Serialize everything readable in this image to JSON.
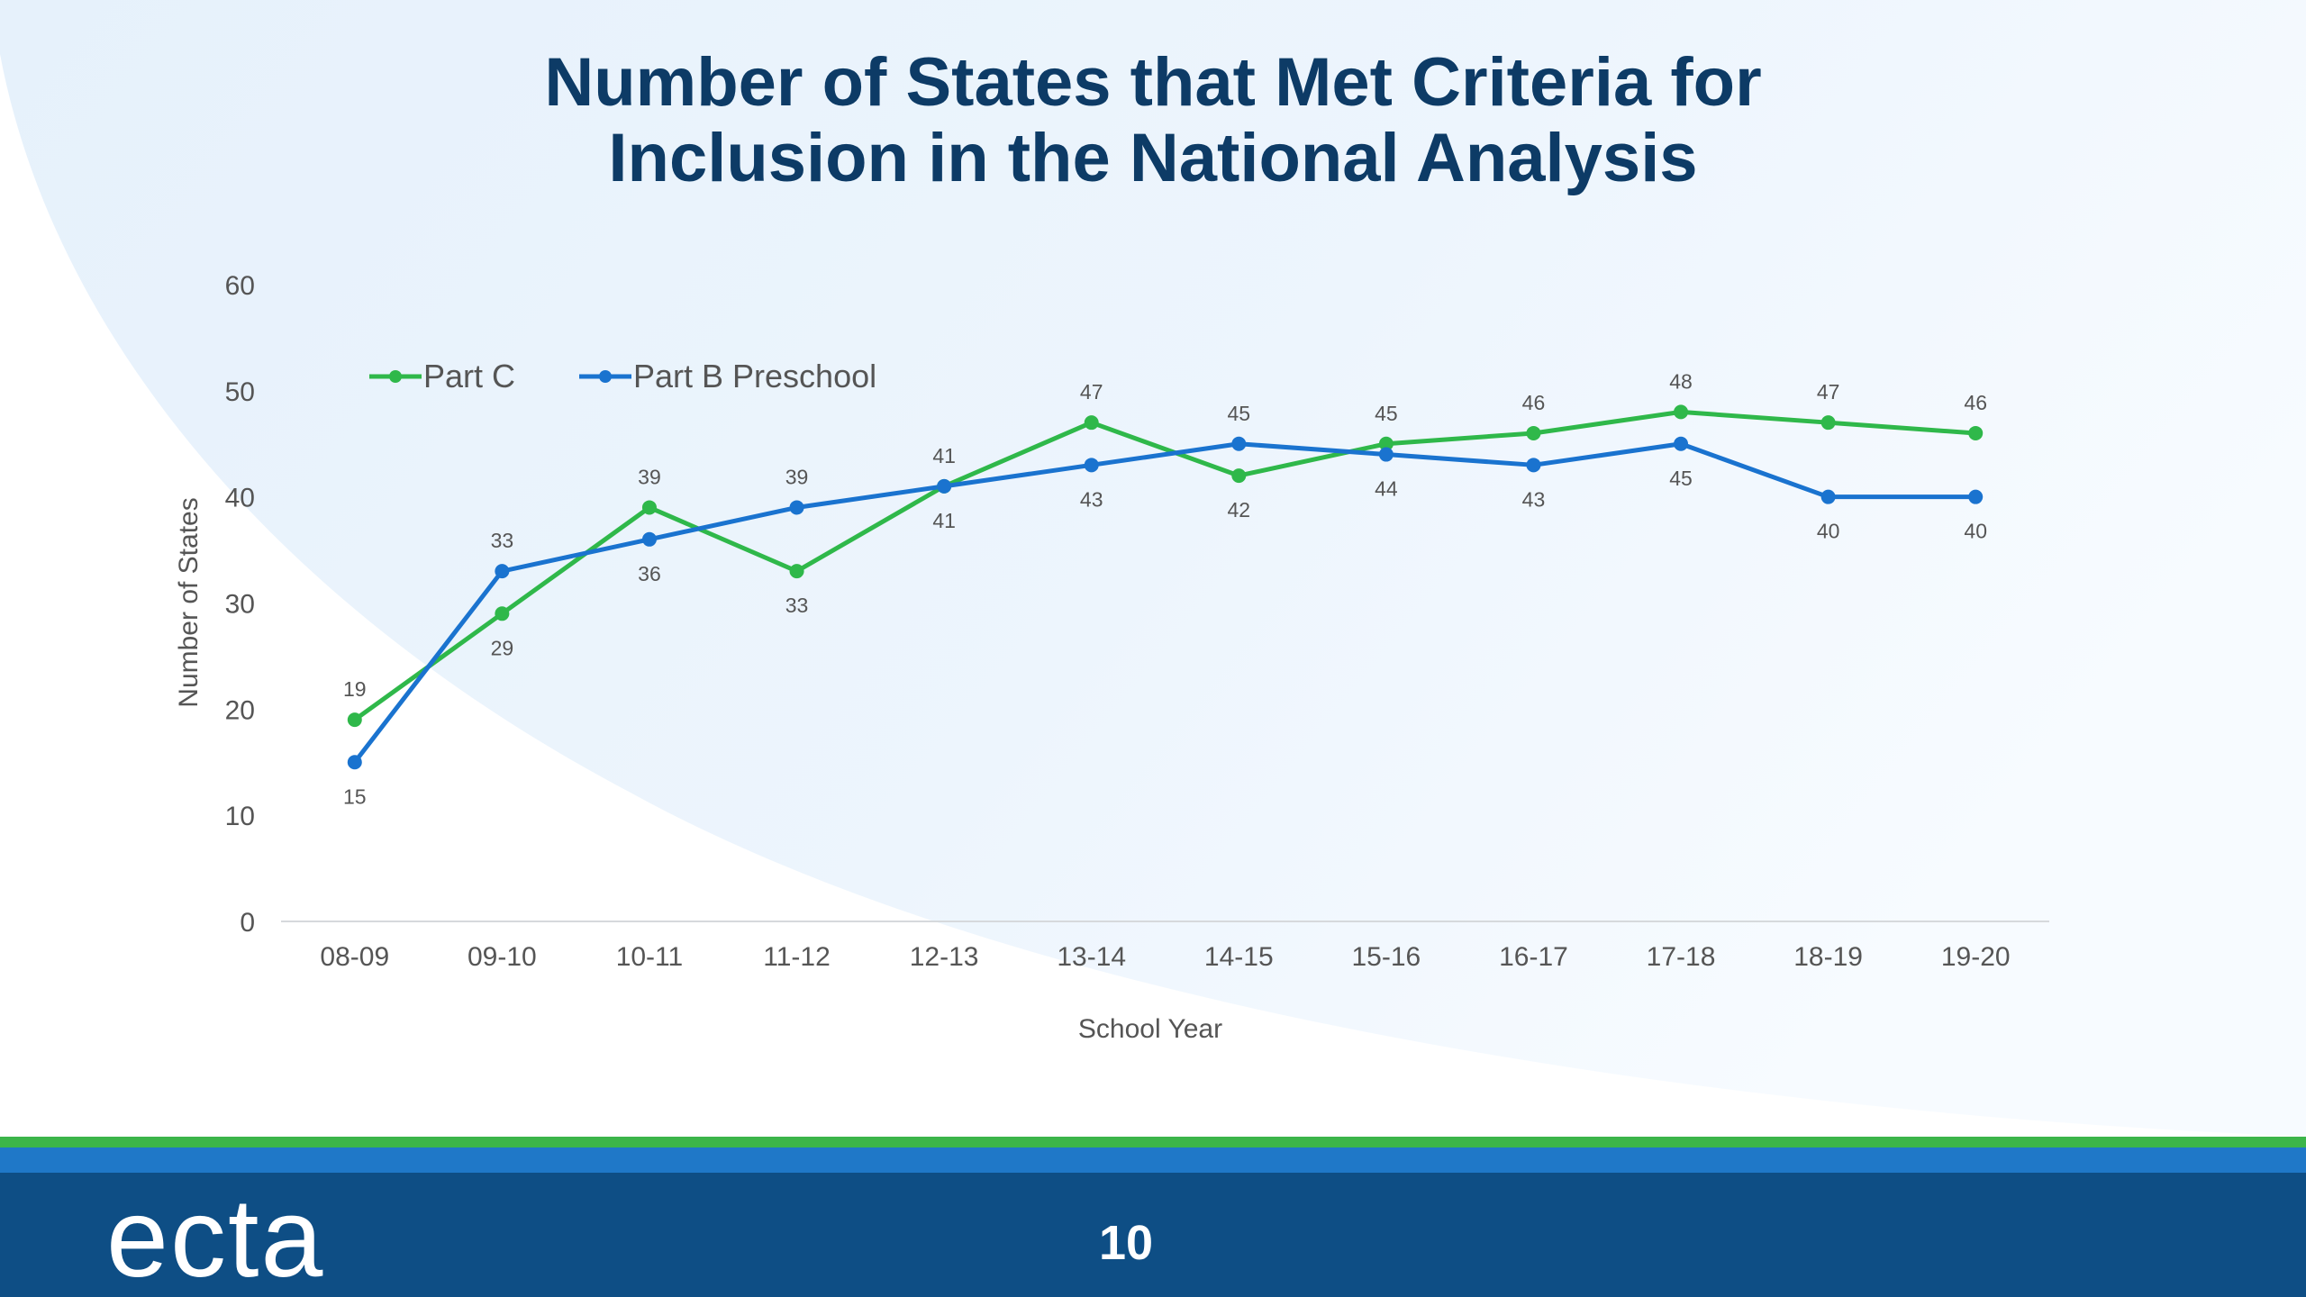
{
  "slide": {
    "title_line1": "Number of States that Met Criteria for",
    "title_line2": "Inclusion in the National Analysis",
    "logo_text": "ecta",
    "page_number": "10"
  },
  "colors": {
    "title": "#0d3b66",
    "part_c": "#2fb84a",
    "part_b": "#1a73cf",
    "footer_navy": "#0e4e85",
    "footer_blue": "#1f78c8",
    "footer_green": "#3cb54a",
    "background_curve": "#eaf3fc"
  },
  "chart_data": {
    "type": "line",
    "categories": [
      "08-09",
      "09-10",
      "10-11",
      "11-12",
      "12-13",
      "13-14",
      "14-15",
      "15-16",
      "16-17",
      "17-18",
      "18-19",
      "19-20"
    ],
    "series": [
      {
        "name": "Part C",
        "color": "#2fb84a",
        "values": [
          19,
          29,
          39,
          33,
          41,
          47,
          42,
          45,
          46,
          48,
          47,
          46
        ]
      },
      {
        "name": "Part B Preschool",
        "color": "#1a73cf",
        "values": [
          15,
          33,
          36,
          39,
          41,
          43,
          45,
          44,
          43,
          45,
          40,
          40
        ]
      }
    ],
    "ylim": [
      0,
      60
    ],
    "yticks": [
      0,
      10,
      20,
      30,
      40,
      50,
      60
    ],
    "xlabel": "School Year",
    "ylabel": "Number of States",
    "legend_position": "top-left",
    "grid": false,
    "data_labels": true
  }
}
